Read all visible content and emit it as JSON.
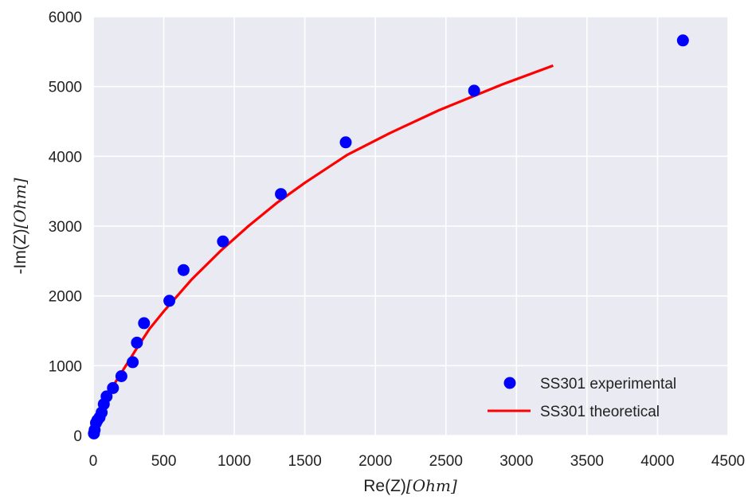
{
  "chart_data": {
    "type": "scatter",
    "title": "",
    "xlabel": "Re(Z)",
    "xlabel_unit": "[Ohm]",
    "ylabel": "-Im(Z)",
    "ylabel_unit": "[Ohm]",
    "xlim": [
      0,
      4500
    ],
    "ylim": [
      0,
      6000
    ],
    "xticks": [
      0,
      500,
      1000,
      1500,
      2000,
      2500,
      3000,
      3500,
      4000,
      4500
    ],
    "yticks": [
      0,
      1000,
      2000,
      3000,
      4000,
      5000,
      6000
    ],
    "grid": true,
    "background": "#eaeaf2",
    "legend_position": "bottom-right",
    "series": [
      {
        "name": "SS301 experimental",
        "kind": "scatter",
        "color": "#0000ff",
        "x": [
          5,
          10,
          20,
          30,
          45,
          60,
          75,
          95,
          140,
          200,
          280,
          310,
          360,
          540,
          640,
          920,
          1330,
          1790,
          2700,
          4180
        ],
        "y": [
          30,
          80,
          180,
          220,
          260,
          330,
          450,
          560,
          680,
          850,
          1050,
          1330,
          1610,
          1930,
          2370,
          2780,
          3460,
          4200,
          4940,
          5660
        ]
      },
      {
        "name": "SS301 theoretical",
        "kind": "line",
        "color": "#ff0000",
        "x": [
          0,
          10,
          25,
          50,
          100,
          150,
          200,
          300,
          400,
          500,
          700,
          900,
          1100,
          1300,
          1500,
          1800,
          2100,
          2450,
          2900,
          3260
        ],
        "y": [
          0,
          100,
          200,
          330,
          560,
          740,
          900,
          1220,
          1530,
          1780,
          2240,
          2640,
          3000,
          3330,
          3620,
          4020,
          4330,
          4660,
          5030,
          5300
        ]
      }
    ]
  }
}
